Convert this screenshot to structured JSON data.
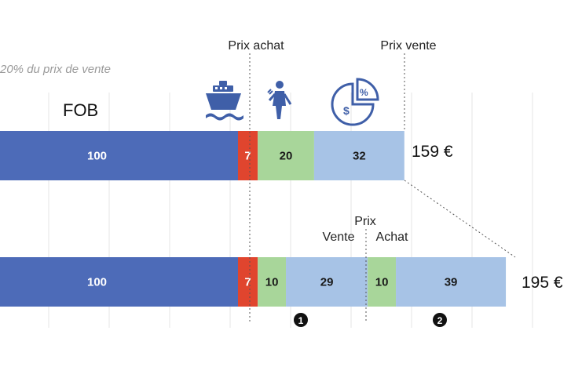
{
  "chart_data": {
    "type": "bar",
    "orientation": "horizontal",
    "stacked": true,
    "subtitle": "20% du prix de vente",
    "grid": true,
    "rows": [
      {
        "row_label": "FOB",
        "total_label": "159 €",
        "segments": [
          {
            "value": 100,
            "label": "100",
            "color": "#4d6bb8"
          },
          {
            "value": 7,
            "label": "7",
            "color": "#e0452e"
          },
          {
            "value": 20,
            "label": "20",
            "color": "#a8d69a"
          },
          {
            "value": 32,
            "label": "32",
            "color": "#a7c3e6"
          }
        ]
      },
      {
        "row_label": "",
        "total_label": "195 €",
        "segments": [
          {
            "value": 100,
            "label": "100",
            "color": "#4d6bb8"
          },
          {
            "value": 7,
            "label": "7",
            "color": "#e0452e"
          },
          {
            "value": 10,
            "label": "10",
            "color": "#a8d69a"
          },
          {
            "value": 29,
            "label": "29",
            "color": "#a7c3e6"
          },
          {
            "value": 10,
            "label": "10",
            "color": "#a8d69a"
          },
          {
            "value": 39,
            "label": "39",
            "color": "#a7c3e6"
          }
        ]
      }
    ],
    "annotations": {
      "prix_achat": "Prix achat",
      "prix_vente": "Prix vente",
      "prix": "Prix",
      "vente": "Vente",
      "achat": "Achat",
      "marker_1": "1",
      "marker_2": "2"
    },
    "icons": [
      "ship-icon",
      "worker-icon",
      "pie-chart-money-icon"
    ],
    "label_colors": {
      "dark_segment": "#ffffff",
      "light_segment": "#1a1a1a"
    },
    "icon_color": "#3f5fa8"
  }
}
